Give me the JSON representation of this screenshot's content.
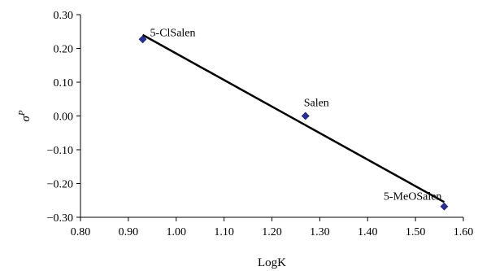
{
  "chart_data": {
    "type": "scatter",
    "title": "",
    "xlabel": "LogK",
    "ylabel_main": "σ",
    "ylabel_sup": "P",
    "xlim": [
      0.8,
      1.6
    ],
    "ylim": [
      -0.3,
      0.3
    ],
    "x_ticks": [
      "0.80",
      "0.90",
      "1.00",
      "1.10",
      "1.20",
      "1.30",
      "1.40",
      "1.50",
      "1.60"
    ],
    "y_ticks": [
      "0.30",
      "0.20",
      "0.10",
      "0.00",
      "−0.10",
      "−0.20",
      "−0.30"
    ],
    "x_tick_values": [
      0.8,
      0.9,
      1.0,
      1.1,
      1.2,
      1.3,
      1.4,
      1.5,
      1.6
    ],
    "y_tick_values": [
      0.3,
      0.2,
      0.1,
      0.0,
      -0.1,
      -0.2,
      -0.3
    ],
    "grid": false,
    "points": [
      {
        "label": "5-ClSalen",
        "x": 0.93,
        "y": 0.227
      },
      {
        "label": "Salen",
        "x": 1.27,
        "y": 0.0
      },
      {
        "label": "5-MeOSalen",
        "x": 1.56,
        "y": -0.268
      }
    ],
    "trendline": {
      "x": [
        0.93,
        1.56
      ],
      "y": [
        0.24,
        -0.255
      ]
    },
    "colors": {
      "marker": "#2b2f8f",
      "line": "#000000",
      "axis": "#000000"
    }
  }
}
